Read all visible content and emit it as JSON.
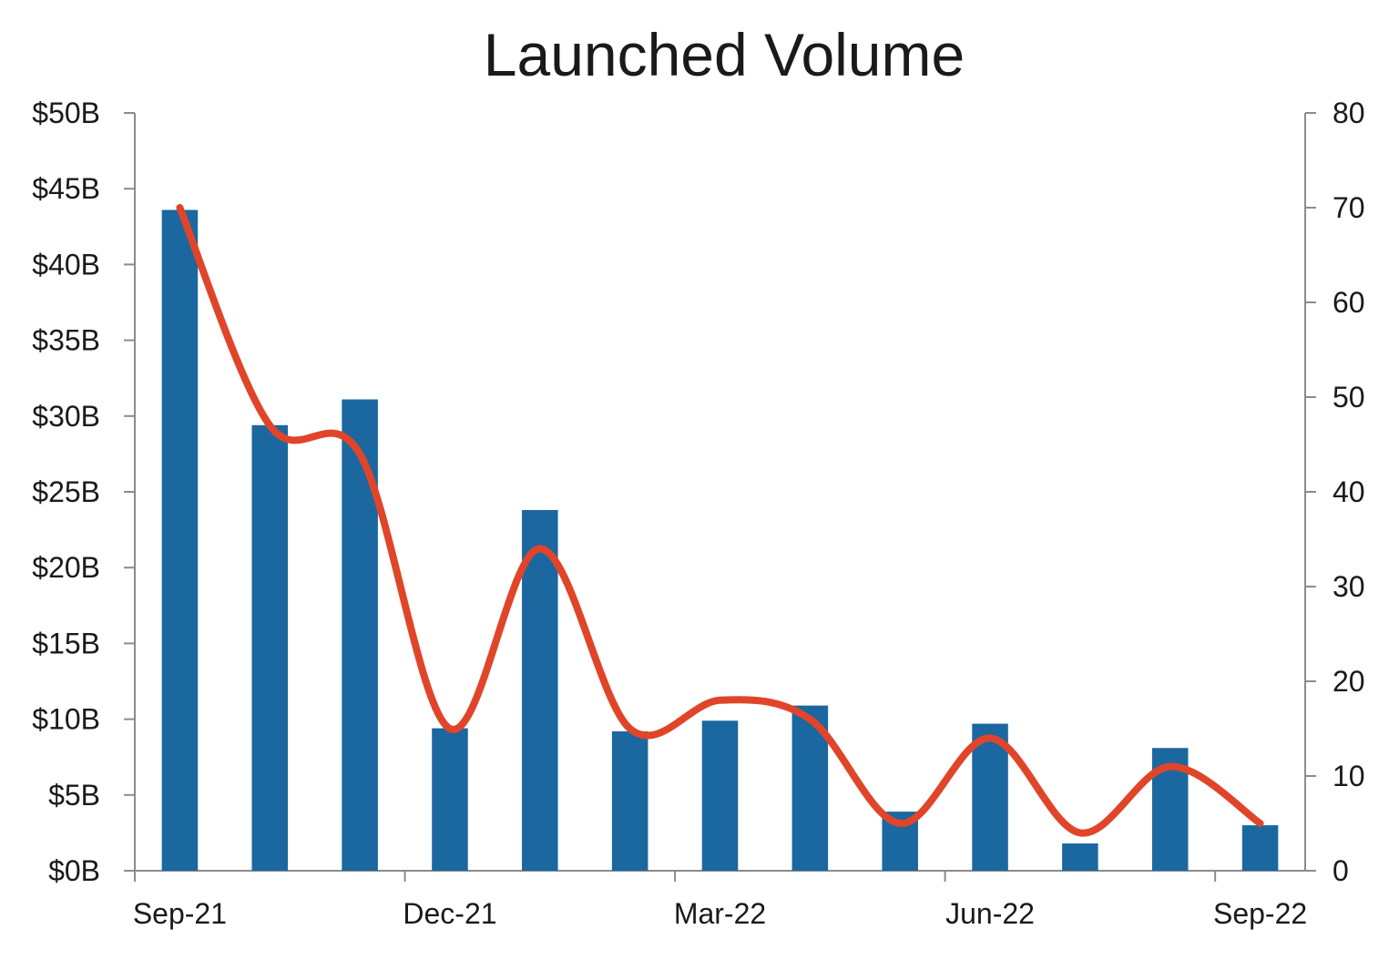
{
  "chart_data": {
    "type": "bar",
    "title": "Launched Volume",
    "x_tick_labels": [
      "Sep-21",
      "Dec-21",
      "Mar-22",
      "Jun-22",
      "Sep-22"
    ],
    "categories": [
      "Sep-21",
      "Oct-21",
      "Nov-21",
      "Dec-21",
      "Jan-22",
      "Feb-22",
      "Mar-22",
      "Apr-22",
      "May-22",
      "Jun-22",
      "Jul-22",
      "Aug-22",
      "Sep-22"
    ],
    "series": [
      {
        "type": "bar",
        "axis": "left",
        "color": "#1b67a0",
        "values": [
          43.6,
          29.4,
          31.1,
          9.4,
          23.8,
          9.2,
          9.9,
          10.9,
          3.9,
          9.7,
          1.8,
          8.1,
          3.0
        ]
      },
      {
        "type": "line",
        "axis": "right",
        "color": "#e0452a",
        "smooth": true,
        "values": [
          70,
          47,
          44,
          15,
          34,
          15,
          18,
          16,
          5,
          14,
          4,
          11,
          5
        ]
      }
    ],
    "y_left": {
      "min": 0,
      "max": 50,
      "step": 5,
      "tick_labels": [
        "$0B",
        "$5B",
        "$10B",
        "$15B",
        "$20B",
        "$25B",
        "$30B",
        "$35B",
        "$40B",
        "$45B",
        "$50B"
      ]
    },
    "y_right": {
      "min": 0,
      "max": 80,
      "step": 10,
      "tick_labels": [
        "0",
        "10",
        "20",
        "30",
        "40",
        "50",
        "60",
        "70",
        "80"
      ]
    },
    "grid": false,
    "legend": "none"
  }
}
